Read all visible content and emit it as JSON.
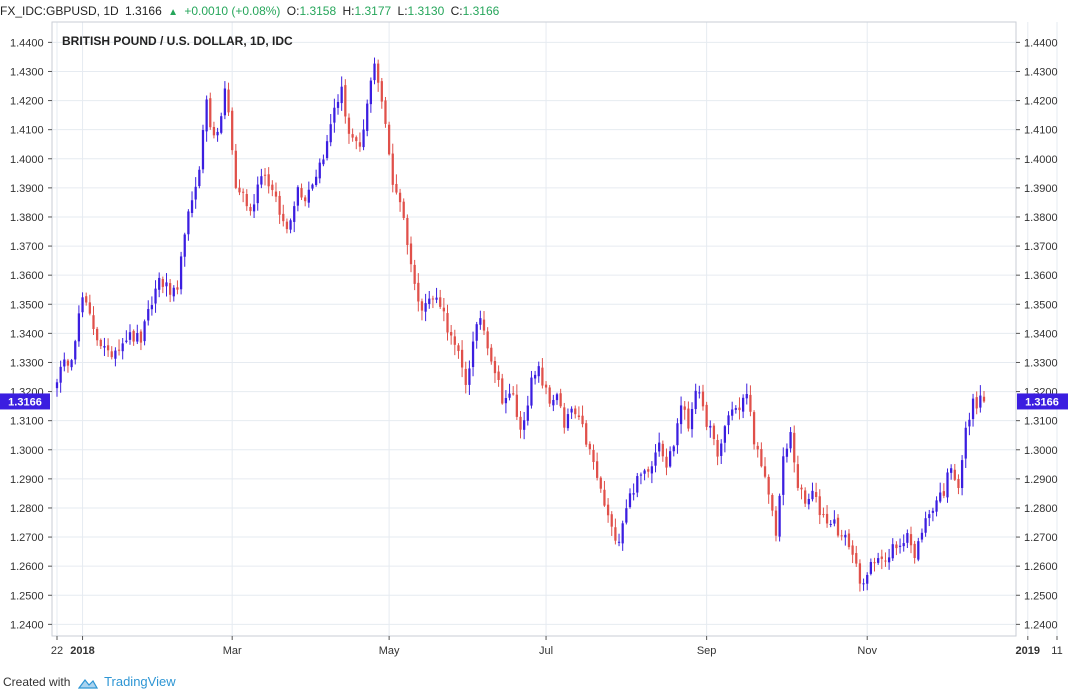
{
  "header": {
    "symbol": "FX_IDC:GBPUSD, 1D",
    "last": "1.3166",
    "change": "+0.0010 (+0.08%)",
    "change_arrow": "up-triangle-icon",
    "open_label": "O:",
    "open": "1.3158",
    "high_label": "H:",
    "high": "1.3177",
    "low_label": "L:",
    "low": "1.3130",
    "close_label": "C:",
    "close": "1.3166"
  },
  "footer": {
    "created_with": "Created with",
    "brand": "TradingView",
    "brand_icon": "tradingview-logo-icon"
  },
  "colors": {
    "up": "#3b1ee0",
    "down": "#e0504a",
    "grid": "#e6ebf1",
    "price_label_bg": "#3b1ee0"
  },
  "chart_data": {
    "type": "candlestick",
    "title": "BRITISH POUND / U.S. DOLLAR, 1D, IDC",
    "ylim": [
      1.236,
      1.447
    ],
    "ytick_labels": [
      "1.2400",
      "1.2500",
      "1.2600",
      "1.2700",
      "1.2800",
      "1.2900",
      "1.3000",
      "1.3100",
      "1.3200",
      "1.3300",
      "1.3400",
      "1.3500",
      "1.3600",
      "1.3700",
      "1.3800",
      "1.3900",
      "1.4000",
      "1.4100",
      "1.4200",
      "1.4300",
      "1.4400"
    ],
    "xtick_labels": [
      {
        "label": "22",
        "bold": false,
        "index": 0
      },
      {
        "label": "2018",
        "bold": true,
        "index": 7
      },
      {
        "label": "Mar",
        "bold": false,
        "index": 48
      },
      {
        "label": "May",
        "bold": false,
        "index": 91
      },
      {
        "label": "Jul",
        "bold": false,
        "index": 134
      },
      {
        "label": "Sep",
        "bold": false,
        "index": 178
      },
      {
        "label": "Nov",
        "bold": false,
        "index": 222
      },
      {
        "label": "2019",
        "bold": true,
        "index": 266
      },
      {
        "label": "11",
        "bold": false,
        "index": 274
      }
    ],
    "last_price": 1.3166,
    "last_price_label": "1.3166",
    "anchors": [
      [
        0,
        1.325
      ],
      [
        4,
        1.333
      ],
      [
        7,
        1.352
      ],
      [
        11,
        1.339
      ],
      [
        14,
        1.332
      ],
      [
        19,
        1.339
      ],
      [
        23,
        1.338
      ],
      [
        28,
        1.359
      ],
      [
        31,
        1.354
      ],
      [
        33,
        1.353
      ],
      [
        35,
        1.376
      ],
      [
        37,
        1.384
      ],
      [
        39,
        1.398
      ],
      [
        41,
        1.42
      ],
      [
        42,
        1.412
      ],
      [
        44,
        1.407
      ],
      [
        46,
        1.424
      ],
      [
        47,
        1.415
      ],
      [
        49,
        1.39
      ],
      [
        51,
        1.388
      ],
      [
        53,
        1.381
      ],
      [
        56,
        1.396
      ],
      [
        58,
        1.392
      ],
      [
        62,
        1.378
      ],
      [
        63,
        1.376
      ],
      [
        66,
        1.39
      ],
      [
        68,
        1.387
      ],
      [
        71,
        1.395
      ],
      [
        74,
        1.405
      ],
      [
        76,
        1.418
      ],
      [
        78,
        1.423
      ],
      [
        80,
        1.409
      ],
      [
        83,
        1.402
      ],
      [
        85,
        1.418
      ],
      [
        87,
        1.434
      ],
      [
        89,
        1.42
      ],
      [
        92,
        1.392
      ],
      [
        94,
        1.386
      ],
      [
        96,
        1.372
      ],
      [
        98,
        1.356
      ],
      [
        100,
        1.35
      ],
      [
        103,
        1.352
      ],
      [
        105,
        1.351
      ],
      [
        108,
        1.338
      ],
      [
        110,
        1.332
      ],
      [
        112,
        1.323
      ],
      [
        114,
        1.336
      ],
      [
        116,
        1.346
      ],
      [
        119,
        1.332
      ],
      [
        122,
        1.318
      ],
      [
        125,
        1.318
      ],
      [
        127,
        1.306
      ],
      [
        130,
        1.323
      ],
      [
        132,
        1.327
      ],
      [
        135,
        1.316
      ],
      [
        137,
        1.32
      ],
      [
        139,
        1.307
      ],
      [
        141,
        1.314
      ],
      [
        144,
        1.307
      ],
      [
        147,
        1.295
      ],
      [
        150,
        1.281
      ],
      [
        152,
        1.272
      ],
      [
        154,
        1.27
      ],
      [
        156,
        1.281
      ],
      [
        158,
        1.287
      ],
      [
        160,
        1.291
      ],
      [
        163,
        1.296
      ],
      [
        165,
        1.304
      ],
      [
        167,
        1.295
      ],
      [
        169,
        1.302
      ],
      [
        171,
        1.316
      ],
      [
        173,
        1.308
      ],
      [
        175,
        1.322
      ],
      [
        177,
        1.313
      ],
      [
        179,
        1.307
      ],
      [
        181,
        1.297
      ],
      [
        183,
        1.308
      ],
      [
        185,
        1.315
      ],
      [
        187,
        1.313
      ],
      [
        189,
        1.32
      ],
      [
        191,
        1.304
      ],
      [
        193,
        1.293
      ],
      [
        195,
        1.285
      ],
      [
        197,
        1.272
      ],
      [
        199,
        1.296
      ],
      [
        201,
        1.305
      ],
      [
        203,
        1.288
      ],
      [
        205,
        1.281
      ],
      [
        207,
        1.285
      ],
      [
        209,
        1.279
      ],
      [
        211,
        1.276
      ],
      [
        213,
        1.275
      ],
      [
        215,
        1.27
      ],
      [
        217,
        1.268
      ],
      [
        219,
        1.26
      ],
      [
        221,
        1.252
      ],
      [
        223,
        1.26
      ],
      [
        225,
        1.265
      ],
      [
        227,
        1.26
      ],
      [
        229,
        1.266
      ],
      [
        231,
        1.268
      ],
      [
        233,
        1.272
      ],
      [
        235,
        1.262
      ],
      [
        237,
        1.273
      ],
      [
        239,
        1.278
      ],
      [
        241,
        1.283
      ],
      [
        243,
        1.286
      ],
      [
        245,
        1.295
      ],
      [
        247,
        1.288
      ],
      [
        249,
        1.306
      ],
      [
        251,
        1.316
      ],
      [
        253,
        1.3166
      ]
    ]
  }
}
